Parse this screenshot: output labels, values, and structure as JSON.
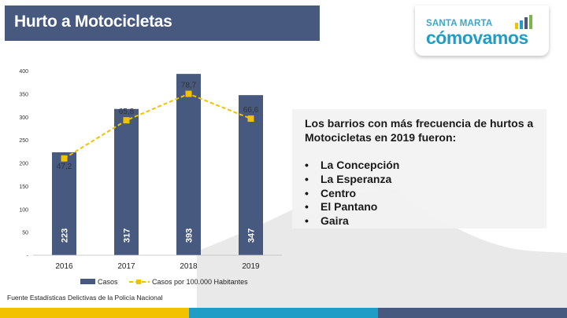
{
  "slide_title": "Hurto a Motocicletas",
  "logo": {
    "top_text": "SANTA MARTA",
    "main_text": "cómovamos"
  },
  "info": {
    "heading": "Los barrios con más frecuencia de hurtos a Motocicletas en 2019 fueron:",
    "items": [
      "La Concepción",
      "La Esperanza",
      "Centro",
      "El Pantano",
      "Gaira"
    ]
  },
  "source": "Fuente Estadísticas Delictivas de la Policía Nacional",
  "colors": {
    "title_bar": "#47597f",
    "bar": "#47597f",
    "line": "#f2c100",
    "logo_blue": "#1f9dc6",
    "footer": [
      "#f2c100",
      "#1f9dc6",
      "#47597f"
    ]
  },
  "chart_data": {
    "type": "bar",
    "categories": [
      "2016",
      "2017",
      "2018",
      "2019"
    ],
    "series": [
      {
        "name": "Casos",
        "type": "bar",
        "values": [
          223,
          317,
          393,
          347
        ],
        "labels": [
          "223",
          "317",
          "393",
          "347"
        ]
      },
      {
        "name": "Casos por 100.000 Habitantes",
        "type": "line",
        "values": [
          47.2,
          65.8,
          78.7,
          66.6
        ],
        "labels": [
          "47,2",
          "65,8",
          "78,7",
          "66,6"
        ]
      }
    ],
    "ylim": [
      0,
      400
    ],
    "yticks": [
      0,
      50,
      100,
      150,
      200,
      250,
      300,
      350,
      400
    ],
    "ytick_labels": [
      "-",
      "50",
      "100",
      "150",
      "200",
      "250",
      "300",
      "350",
      "400"
    ],
    "secondary_ylim": [
      0,
      90
    ],
    "grid": false,
    "legend_position": "bottom"
  }
}
